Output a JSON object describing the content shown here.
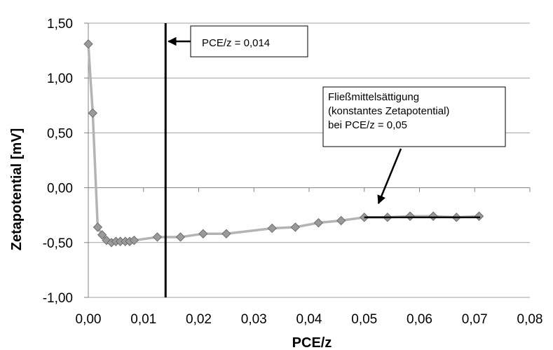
{
  "chart_data": {
    "type": "scatter",
    "title": "",
    "xlabel": "PCE/z",
    "ylabel": "Zetapotential [mV]",
    "xlim": [
      0,
      0.08
    ],
    "ylim": [
      -1.0,
      1.5
    ],
    "x_ticks": [
      "0,00",
      "0,01",
      "0,02",
      "0,03",
      "0,04",
      "0,05",
      "0,06",
      "0,07",
      "0,08"
    ],
    "y_ticks": [
      "1,50",
      "1,00",
      "0,50",
      "0,00",
      "-0,50",
      "-1,00"
    ],
    "grid": "horizontal",
    "series": [
      {
        "line_color": "#b4b4b4",
        "marker_color": "#9a9a9a",
        "marker": "diamond",
        "points": [
          {
            "x": 0.0,
            "y": 1.31
          },
          {
            "x": 0.0008,
            "y": 0.68
          },
          {
            "x": 0.0017,
            "y": -0.36
          },
          {
            "x": 0.0025,
            "y": -0.43
          },
          {
            "x": 0.0033,
            "y": -0.48
          },
          {
            "x": 0.0042,
            "y": -0.5
          },
          {
            "x": 0.005,
            "y": -0.49
          },
          {
            "x": 0.0058,
            "y": -0.49
          },
          {
            "x": 0.0067,
            "y": -0.49
          },
          {
            "x": 0.0075,
            "y": -0.49
          },
          {
            "x": 0.0083,
            "y": -0.48
          },
          {
            "x": 0.0125,
            "y": -0.45
          },
          {
            "x": 0.0167,
            "y": -0.45
          },
          {
            "x": 0.0208,
            "y": -0.42
          },
          {
            "x": 0.025,
            "y": -0.42
          },
          {
            "x": 0.0333,
            "y": -0.37
          },
          {
            "x": 0.0375,
            "y": -0.36
          },
          {
            "x": 0.0417,
            "y": -0.32
          },
          {
            "x": 0.0458,
            "y": -0.3
          },
          {
            "x": 0.05,
            "y": -0.27
          },
          {
            "x": 0.0542,
            "y": -0.27
          },
          {
            "x": 0.0583,
            "y": -0.26
          },
          {
            "x": 0.0625,
            "y": -0.26
          },
          {
            "x": 0.0667,
            "y": -0.27
          },
          {
            "x": 0.0708,
            "y": -0.26
          }
        ]
      }
    ],
    "vertical_line": {
      "x": 0.014
    },
    "saturation_line": {
      "x_start": 0.05,
      "x_end": 0.071,
      "y": -0.27
    },
    "annotations": [
      {
        "lines": [
          "PCE/z = 0,014"
        ]
      },
      {
        "lines": [
          "Fließmittelsättigung",
          "(konstantes Zetapotential)",
          " bei PCE/z = 0,05"
        ]
      }
    ]
  }
}
